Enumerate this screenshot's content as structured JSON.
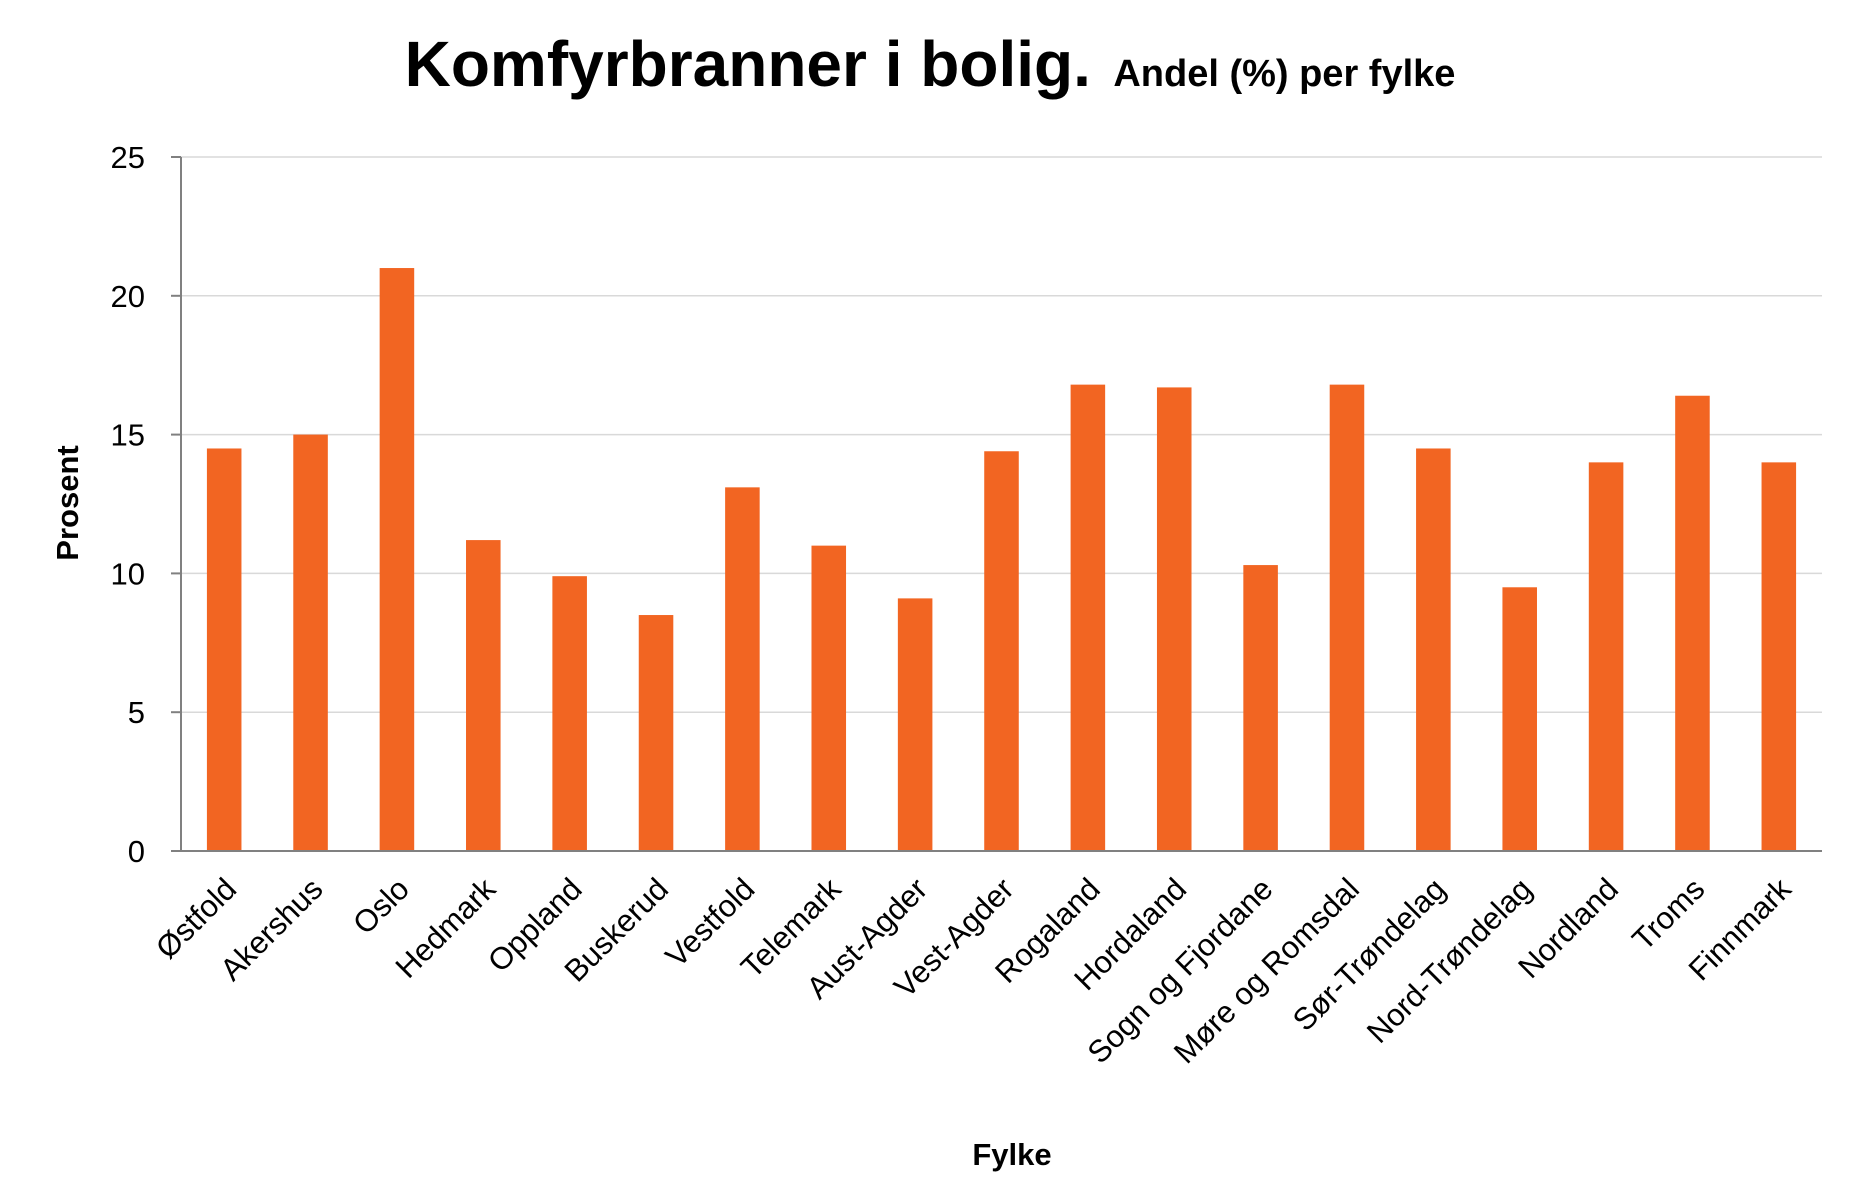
{
  "chart_data": {
    "type": "bar",
    "title": "Komfyrbranner i bolig.",
    "subtitle": "Andel (%) per fylke",
    "xlabel": "Fylke",
    "ylabel": "Prosent",
    "ylim": [
      0,
      25
    ],
    "yticks": [
      0,
      5,
      10,
      15,
      20,
      25
    ],
    "grid": true,
    "bar_color": "#F26522",
    "categories": [
      "Østfold",
      "Akershus",
      "Oslo",
      "Hedmark",
      "Oppland",
      "Buskerud",
      "Vestfold",
      "Telemark",
      "Aust-Agder",
      "Vest-Agder",
      "Rogaland",
      "Hordaland",
      "Sogn og Fjordane",
      "Møre og Romsdal",
      "Sør-Trøndelag",
      "Nord-Trøndelag",
      "Nordland",
      "Troms",
      "Finnmark"
    ],
    "values": [
      14.5,
      15.0,
      21.0,
      11.2,
      9.9,
      8.5,
      13.1,
      11.0,
      9.1,
      14.4,
      16.8,
      16.7,
      10.3,
      16.8,
      14.5,
      9.5,
      14.0,
      16.4,
      14.0
    ]
  }
}
